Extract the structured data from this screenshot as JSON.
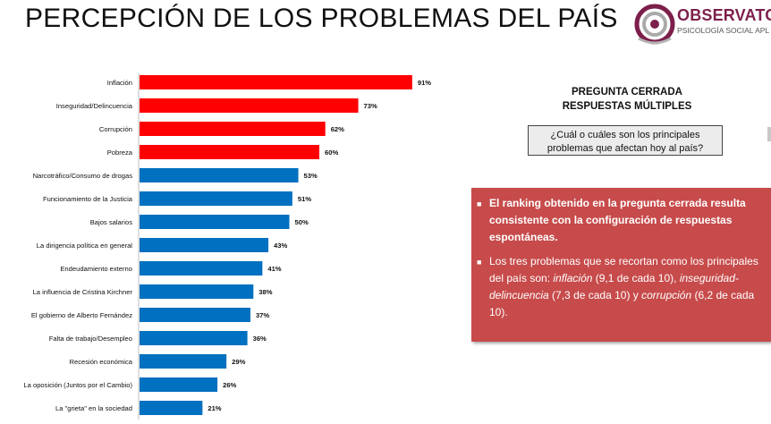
{
  "header": {
    "title": "PERCEPCIÓN DE LOS PROBLEMAS DEL PAÍS",
    "logo_word": "OBSERVATOI",
    "logo_sub": "PSICOLOGÍA SOCIAL APL"
  },
  "question": {
    "header_line1": "PREGUNTA CERRADA",
    "header_line2": "RESPUESTAS MÚLTIPLES",
    "text_line1": "¿Cuál o cuáles son los principales",
    "text_line2": "problemas que afectan hoy al país?"
  },
  "panel": {
    "bullet1": "El ranking obtenido en la pregunta cerrada resulta consistente con la configuración de respuestas espontáneas.",
    "bullet2_a": "Los tres problemas que se recortan como los principales del país son: ",
    "bullet2_b": "inflación",
    "bullet2_c": " (9,1 de cada 10), ",
    "bullet2_d": "inseguridad-delincuencia",
    "bullet2_e": " (7,3 de cada 10) y ",
    "bullet2_f": "corrupción",
    "bullet2_g": " (6,2 de cada 10).",
    "bullet_color": "#c74b4b"
  },
  "chart_data": {
    "type": "bar",
    "orientation": "horizontal",
    "categories": [
      "Inflación",
      "Inseguridad/Delincuencia",
      "Corrupción",
      "Pobreza",
      "Narcotráfico/Consumo de drogas",
      "Funcionamiento de la Justicia",
      "Bajos salarios",
      "La dirigencia política en general",
      "Endeudamiento externo",
      "La influencia de Cristina Kirchner",
      "El gobierno de Alberto Fernández",
      "Falta de trabajo/Desempleo",
      "Recesión económica",
      "La oposición (Juntos por el Cambio)",
      "La \"grieta\" en la sociedad"
    ],
    "values": [
      91,
      73,
      62,
      60,
      53,
      51,
      50,
      43,
      41,
      38,
      37,
      36,
      29,
      26,
      21
    ],
    "value_labels": [
      "91%",
      "73%",
      "62%",
      "60%",
      "53%",
      "51%",
      "50%",
      "43%",
      "41%",
      "38%",
      "37%",
      "36%",
      "29%",
      "26%",
      "21%"
    ],
    "highlight_top": 4,
    "colors": {
      "highlight": "#ff0000",
      "normal": "#0070c0"
    },
    "xlim": [
      0,
      100
    ],
    "grid": false
  }
}
